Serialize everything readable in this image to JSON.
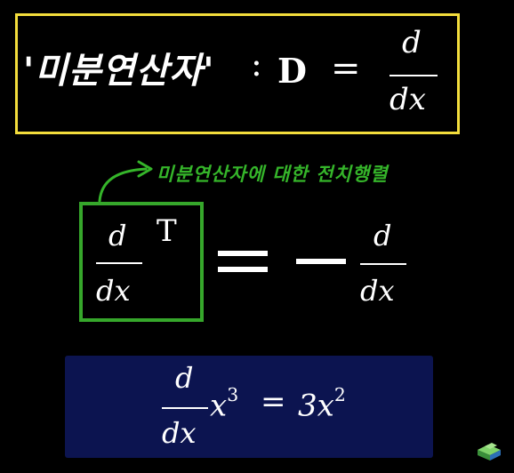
{
  "definition": {
    "term": "'미분연산자'",
    "colon": ":",
    "symbol": "D",
    "equals": "=",
    "numerator": "d",
    "denominator": "dx"
  },
  "note": {
    "text": "미분연산자에 대한 전치행렬"
  },
  "transpose": {
    "numerator": "d",
    "denominator": "dx",
    "superscript": "T",
    "rhs_numerator": "d",
    "rhs_denominator": "dx"
  },
  "example": {
    "numerator": "d",
    "denominator": "dx",
    "base": "x",
    "exponent": "3",
    "equals": "=",
    "rhs_coef": "3x",
    "rhs_exponent": "2"
  },
  "colors": {
    "yellow_border": "#f3dd3c",
    "green_border": "#36a72b",
    "note_green": "#35b52a",
    "example_bg": "#0c1450"
  },
  "icons": {
    "logo": "isometric-block-logo-icon",
    "arrow": "curved-arrow-icon"
  }
}
